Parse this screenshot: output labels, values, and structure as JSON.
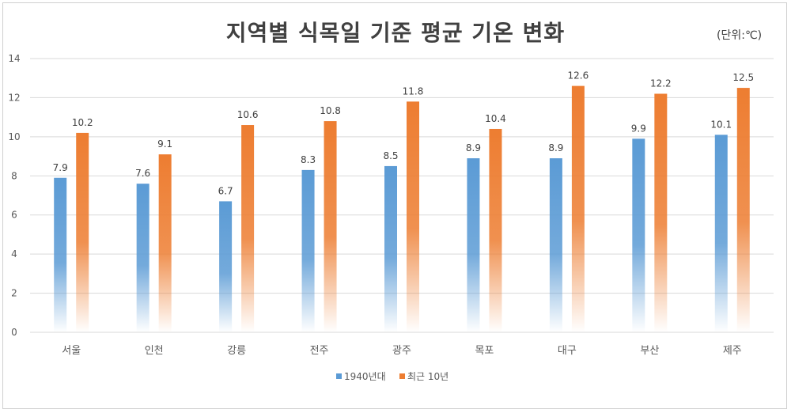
{
  "title": "지역별 식목일 기준 평균 기온 변화",
  "unit_label": "(단위:℃)",
  "chart_data": {
    "type": "bar",
    "title": "지역별 식목일 기준 평균 기온 변화",
    "categories": [
      "서울",
      "인천",
      "강릉",
      "전주",
      "광주",
      "목포",
      "대구",
      "부산",
      "제주"
    ],
    "series": [
      {
        "name": "1940년대",
        "color": "#5b9bd5",
        "values": [
          7.9,
          7.6,
          6.7,
          8.3,
          8.5,
          8.9,
          8.9,
          9.9,
          10.1
        ]
      },
      {
        "name": "최근 10년",
        "color": "#ed7d31",
        "values": [
          10.2,
          9.1,
          10.6,
          10.8,
          11.8,
          10.4,
          12.6,
          12.2,
          12.5
        ]
      }
    ],
    "value_labels": [
      [
        "7.9",
        "7.6",
        "6.7",
        "8.3",
        "8.5",
        "8.9",
        "8.9",
        "9.9",
        "10.1"
      ],
      [
        "10.2",
        "9.1",
        "10.6",
        "10.8",
        "11.8",
        "10.4",
        "12.6",
        "12.2",
        "12.5"
      ]
    ],
    "ylim": [
      0,
      14
    ],
    "yticks": [
      "0",
      "2",
      "4",
      "6",
      "8",
      "10",
      "12",
      "14"
    ],
    "grid": true,
    "legend": "bottom"
  }
}
